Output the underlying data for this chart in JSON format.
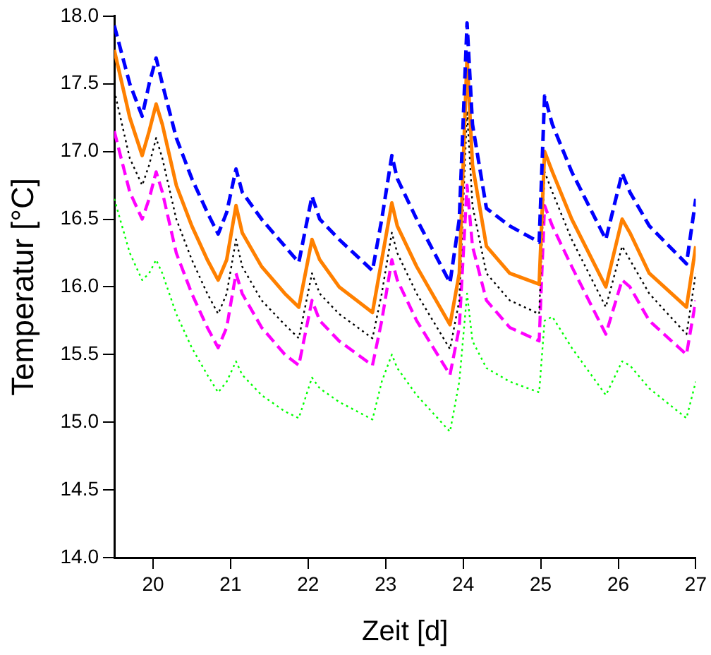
{
  "chart_data": {
    "type": "line",
    "xlabel": "Zeit [d]",
    "ylabel": "Temperatur [°C]",
    "x": [
      19.5,
      19.7,
      19.86,
      19.95,
      20.04,
      20.12,
      20.3,
      20.5,
      20.7,
      20.84,
      20.95,
      21.07,
      21.15,
      21.4,
      21.7,
      21.88,
      22.05,
      22.15,
      22.4,
      22.83,
      22.95,
      23.08,
      23.15,
      23.4,
      23.83,
      23.95,
      24.05,
      24.12,
      24.3,
      24.6,
      24.98,
      25.05,
      25.15,
      25.4,
      25.84,
      26.05,
      26.15,
      26.4,
      26.88,
      27.0
    ],
    "series": [
      {
        "color": "#0000ff",
        "line_style": "dashed",
        "values": [
          17.93,
          17.5,
          17.26,
          17.5,
          17.69,
          17.5,
          17.1,
          16.8,
          16.55,
          16.39,
          16.55,
          16.87,
          16.7,
          16.5,
          16.3,
          16.18,
          16.67,
          16.5,
          16.35,
          16.12,
          16.5,
          16.97,
          16.8,
          16.5,
          16.03,
          16.5,
          17.95,
          17.2,
          16.58,
          16.45,
          16.33,
          17.41,
          17.2,
          16.85,
          16.35,
          16.84,
          16.7,
          16.45,
          16.17,
          16.65
        ]
      },
      {
        "color": "#ff8000",
        "line_style": "solid",
        "values": [
          17.75,
          17.25,
          16.97,
          17.15,
          17.35,
          17.2,
          16.75,
          16.45,
          16.2,
          16.05,
          16.2,
          16.6,
          16.4,
          16.15,
          15.95,
          15.85,
          16.35,
          16.2,
          16.0,
          15.81,
          16.2,
          16.62,
          16.45,
          16.15,
          15.72,
          16.1,
          17.7,
          16.9,
          16.3,
          16.1,
          16.02,
          17.0,
          16.85,
          16.5,
          16.0,
          16.5,
          16.4,
          16.1,
          15.85,
          16.3
        ]
      },
      {
        "color": "#000000",
        "line_style": "dotted",
        "values": [
          17.45,
          16.95,
          16.75,
          16.9,
          17.1,
          16.95,
          16.5,
          16.2,
          15.95,
          15.8,
          15.95,
          16.35,
          16.15,
          15.9,
          15.72,
          15.62,
          16.1,
          15.95,
          15.8,
          15.62,
          15.95,
          16.4,
          16.25,
          15.95,
          15.54,
          15.9,
          17.3,
          16.6,
          16.1,
          15.9,
          15.8,
          16.85,
          16.7,
          16.35,
          15.85,
          16.3,
          16.2,
          15.95,
          15.65,
          16.1
        ]
      },
      {
        "color": "#ff00ff",
        "line_style": "dashed",
        "values": [
          17.15,
          16.7,
          16.5,
          16.65,
          16.85,
          16.7,
          16.25,
          15.95,
          15.7,
          15.55,
          15.7,
          16.1,
          15.95,
          15.7,
          15.5,
          15.42,
          15.9,
          15.75,
          15.6,
          15.42,
          15.75,
          16.2,
          16.05,
          15.75,
          15.35,
          15.7,
          16.75,
          16.3,
          15.9,
          15.7,
          15.6,
          16.6,
          16.45,
          16.15,
          15.65,
          16.05,
          16.0,
          15.75,
          15.5,
          15.9
        ]
      },
      {
        "color": "#00ff00",
        "line_style": "dotted",
        "values": [
          16.65,
          16.25,
          16.05,
          16.1,
          16.2,
          16.1,
          15.8,
          15.55,
          15.35,
          15.22,
          15.3,
          15.45,
          15.35,
          15.2,
          15.08,
          15.03,
          15.33,
          15.25,
          15.15,
          15.02,
          15.3,
          15.5,
          15.4,
          15.2,
          14.93,
          15.3,
          15.95,
          15.6,
          15.4,
          15.3,
          15.22,
          15.75,
          15.78,
          15.55,
          15.2,
          15.45,
          15.42,
          15.25,
          15.03,
          15.3
        ]
      }
    ],
    "xlim": [
      19.5,
      27
    ],
    "xticks": [
      20,
      21,
      22,
      23,
      24,
      25,
      26,
      27
    ],
    "ylim": [
      14,
      18
    ],
    "yticks": [
      {
        "value": 14,
        "label": "14.0"
      },
      {
        "value": 14.5,
        "label": "14.5"
      },
      {
        "value": 15,
        "label": "15.0"
      },
      {
        "value": 15.5,
        "label": "15.5"
      },
      {
        "value": 16,
        "label": "16.0"
      },
      {
        "value": 16.5,
        "label": "16.5"
      },
      {
        "value": 17,
        "label": "17.0"
      },
      {
        "value": 17.5,
        "label": "17.5"
      },
      {
        "value": 18,
        "label": "18.0"
      }
    ],
    "grid": false,
    "marker": "none"
  }
}
